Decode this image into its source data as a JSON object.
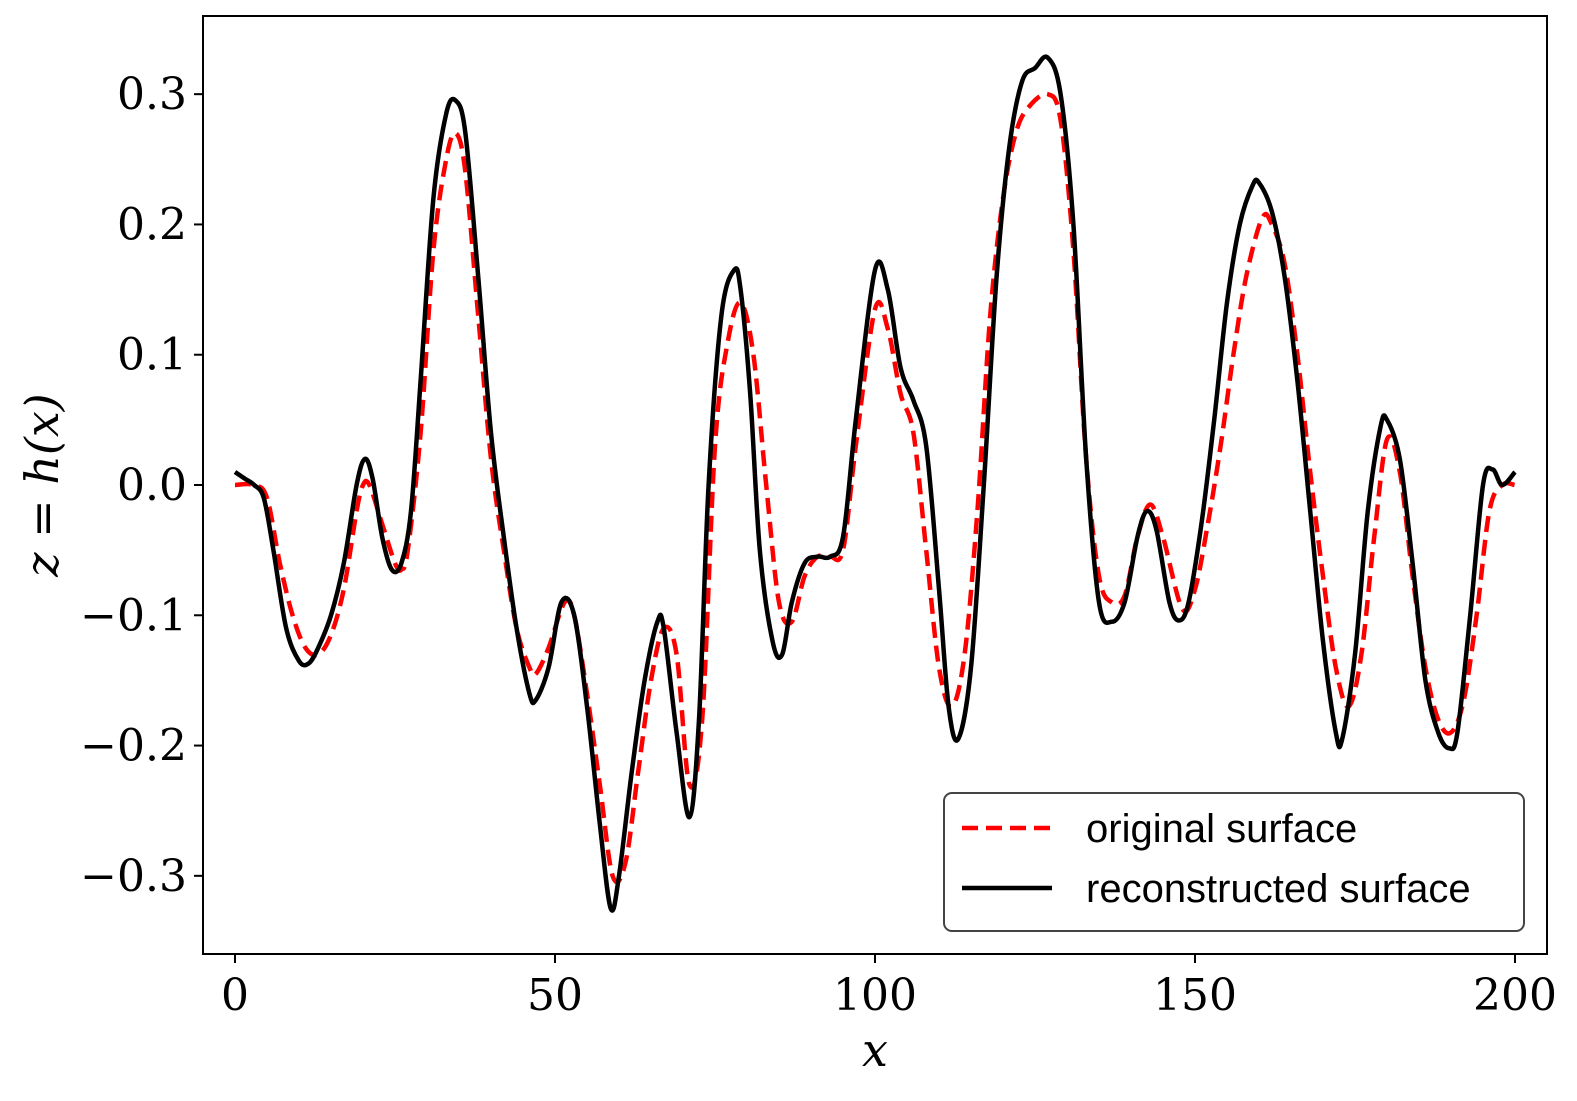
{
  "chart_data": {
    "type": "line",
    "xlabel": "x",
    "ylabel": "z = h(x)",
    "xlim": [
      -5,
      205
    ],
    "ylim": [
      -0.36,
      0.36
    ],
    "xticks": [
      0,
      50,
      100,
      150,
      200
    ],
    "xtick_labels": [
      "0",
      "50",
      "100",
      "150",
      "200"
    ],
    "yticks": [
      -0.3,
      -0.2,
      -0.1,
      0.0,
      0.1,
      0.2,
      0.3
    ],
    "ytick_labels": [
      "−0.3",
      "−0.2",
      "−0.1",
      "0.0",
      "0.1",
      "0.2",
      "0.3"
    ],
    "grid": false,
    "legend_position": "bottom-right",
    "series": [
      {
        "name": "original surface",
        "color": "#ff0000",
        "style": "dashed",
        "x": [
          0,
          3,
          5,
          7,
          9,
          11,
          13,
          15,
          17,
          19,
          20,
          21,
          23,
          25,
          26,
          27,
          29,
          31,
          33,
          34.5,
          36,
          38,
          40,
          42,
          44,
          46,
          47,
          49,
          51.5,
          53,
          55,
          57,
          59,
          61,
          63,
          65,
          67,
          69,
          71,
          73,
          75,
          77,
          79,
          81,
          83,
          85,
          87,
          89,
          91,
          93,
          95,
          97,
          100,
          102,
          104,
          106,
          108,
          110,
          112,
          114,
          116,
          118,
          120,
          122,
          124,
          127,
          129,
          131,
          133,
          135,
          137,
          139,
          141,
          143,
          145,
          148,
          150,
          152,
          154,
          156,
          158,
          160.5,
          162,
          164,
          166,
          168,
          170,
          172,
          174,
          176,
          178,
          180,
          182,
          184,
          186,
          188,
          190,
          192,
          194,
          196,
          198,
          200
        ],
        "y": [
          0.0,
          0.0,
          -0.01,
          -0.06,
          -0.1,
          -0.125,
          -0.13,
          -0.115,
          -0.08,
          -0.02,
          0.0,
          0.0,
          -0.03,
          -0.06,
          -0.065,
          -0.05,
          0.04,
          0.18,
          0.25,
          0.27,
          0.24,
          0.13,
          0.02,
          -0.05,
          -0.11,
          -0.14,
          -0.145,
          -0.125,
          -0.09,
          -0.1,
          -0.16,
          -0.23,
          -0.3,
          -0.29,
          -0.22,
          -0.15,
          -0.11,
          -0.13,
          -0.23,
          -0.18,
          0.03,
          0.11,
          0.14,
          0.1,
          0.0,
          -0.09,
          -0.105,
          -0.07,
          -0.055,
          -0.055,
          -0.05,
          0.03,
          0.135,
          0.12,
          0.07,
          0.04,
          -0.05,
          -0.14,
          -0.17,
          -0.13,
          -0.02,
          0.13,
          0.22,
          0.27,
          0.29,
          0.3,
          0.28,
          0.18,
          0.02,
          -0.07,
          -0.09,
          -0.085,
          -0.04,
          -0.015,
          -0.04,
          -0.095,
          -0.08,
          -0.03,
          0.03,
          0.1,
          0.16,
          0.205,
          0.2,
          0.17,
          0.1,
          0.01,
          -0.07,
          -0.14,
          -0.17,
          -0.13,
          -0.04,
          0.035,
          0.01,
          -0.07,
          -0.14,
          -0.18,
          -0.19,
          -0.165,
          -0.1,
          -0.02,
          0.0,
          0.0
        ]
      },
      {
        "name": "reconstructed surface",
        "color": "#000000",
        "style": "solid",
        "x": [
          0,
          1.5,
          3,
          4.5,
          6,
          8,
          10,
          11.5,
          13,
          15,
          17,
          19,
          20.3,
          21.5,
          23,
          24.5,
          26,
          27.5,
          29,
          31,
          33,
          34.5,
          36,
          38,
          40,
          42,
          44,
          46,
          47,
          49,
          51,
          53,
          55,
          57,
          58.7,
          60,
          62,
          64,
          66,
          67,
          69,
          71,
          72.5,
          74,
          76,
          78,
          79,
          80.5,
          82,
          84,
          85.5,
          87,
          89,
          91,
          93,
          95,
          97,
          100,
          102,
          104,
          106,
          108,
          110,
          111.5,
          113,
          115,
          117,
          119,
          121,
          123,
          125,
          127,
          129,
          131,
          133,
          135,
          137,
          139,
          141,
          142.5,
          144,
          146,
          147.5,
          149,
          151,
          153,
          155,
          157,
          159,
          160,
          162,
          164,
          166,
          168,
          170,
          172,
          173,
          175,
          177,
          179,
          180,
          182,
          184,
          186,
          188,
          189.7,
          191,
          193,
          195,
          196.5,
          198,
          200
        ],
        "y": [
          0.01,
          0.005,
          0.0,
          -0.01,
          -0.05,
          -0.11,
          -0.135,
          -0.137,
          -0.125,
          -0.1,
          -0.06,
          0.0,
          0.02,
          0.005,
          -0.04,
          -0.065,
          -0.06,
          -0.02,
          0.08,
          0.22,
          0.285,
          0.295,
          0.27,
          0.16,
          0.04,
          -0.04,
          -0.11,
          -0.16,
          -0.165,
          -0.14,
          -0.09,
          -0.1,
          -0.17,
          -0.26,
          -0.325,
          -0.3,
          -0.22,
          -0.15,
          -0.105,
          -0.11,
          -0.19,
          -0.255,
          -0.18,
          0.0,
          0.13,
          0.165,
          0.15,
          0.07,
          -0.05,
          -0.12,
          -0.13,
          -0.09,
          -0.06,
          -0.055,
          -0.055,
          -0.04,
          0.05,
          0.165,
          0.15,
          0.09,
          0.065,
          0.03,
          -0.08,
          -0.17,
          -0.195,
          -0.14,
          0.0,
          0.16,
          0.26,
          0.31,
          0.32,
          0.328,
          0.3,
          0.2,
          0.02,
          -0.09,
          -0.105,
          -0.09,
          -0.04,
          -0.02,
          -0.035,
          -0.09,
          -0.104,
          -0.09,
          -0.03,
          0.05,
          0.14,
          0.2,
          0.23,
          0.232,
          0.21,
          0.16,
          0.08,
          -0.02,
          -0.12,
          -0.19,
          -0.195,
          -0.13,
          -0.02,
          0.045,
          0.05,
          0.02,
          -0.06,
          -0.15,
          -0.19,
          -0.202,
          -0.19,
          -0.1,
          0.0,
          0.012,
          0.0,
          0.01
        ]
      }
    ]
  }
}
